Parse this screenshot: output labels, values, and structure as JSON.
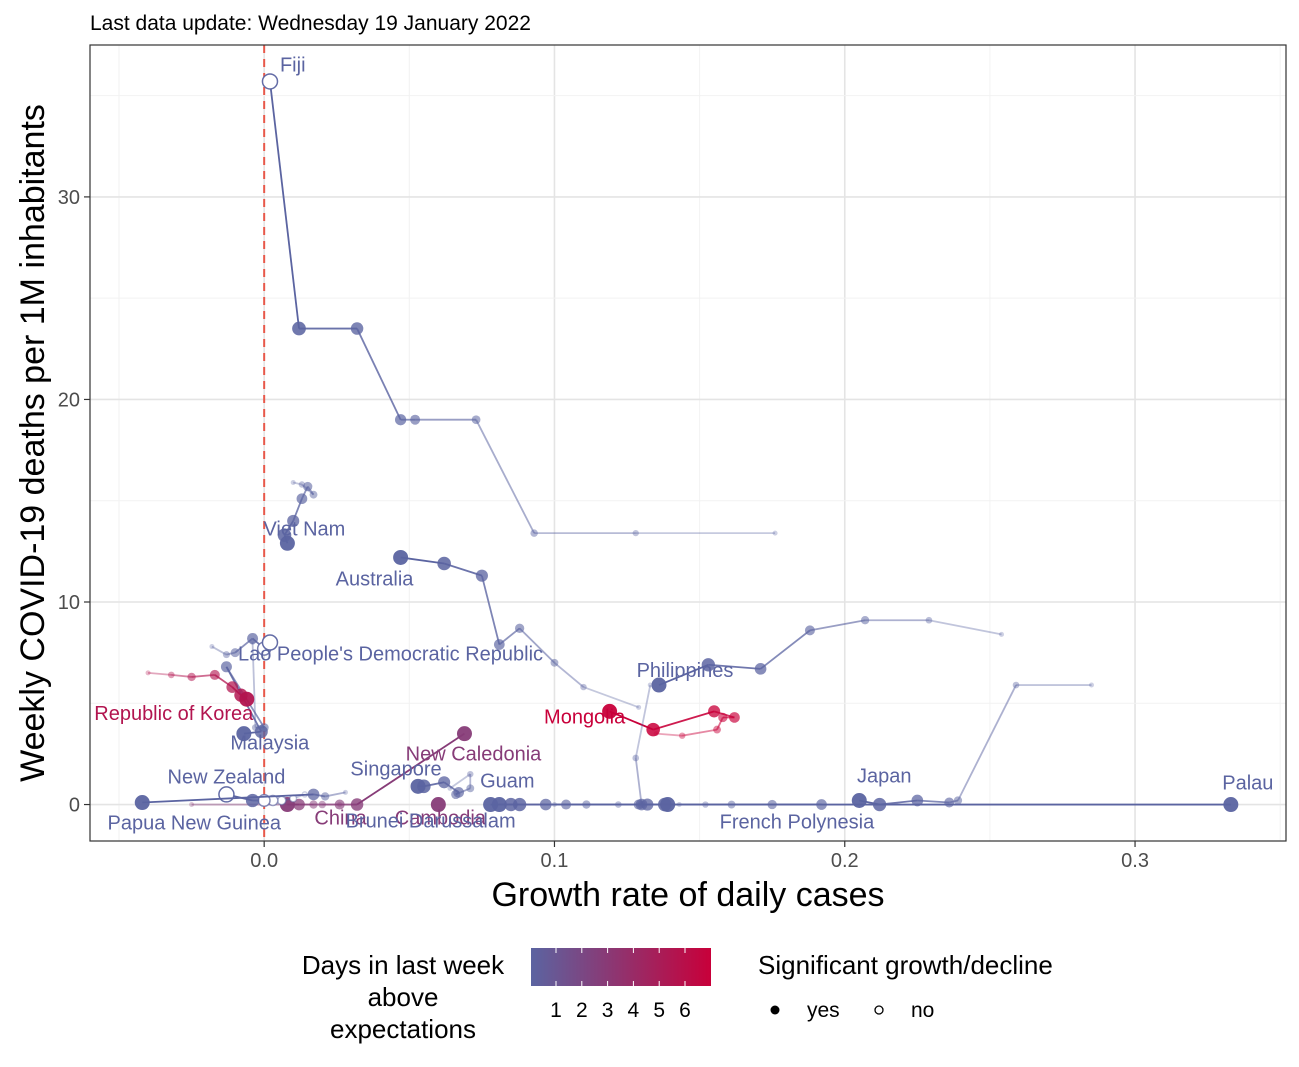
{
  "subtitle": "Last data update: Wednesday 19 January 2022",
  "colors": {
    "low": "#5b64a1",
    "high": "#c8003a",
    "zero_line": "#e8584a",
    "grid_major": "#e4e4e4",
    "grid_minor": "#f2f2f2",
    "panel_border": "#333333"
  },
  "chart_data": {
    "type": "scatter",
    "title": "",
    "xlabel": "Growth rate of daily cases",
    "ylabel": "Weekly COVID-19 deaths per 1M inhabitants",
    "xlim": [
      -0.06,
      0.352
    ],
    "ylim": [
      -1.8,
      37.5
    ],
    "x_ticks": [
      0.0,
      0.1,
      0.2,
      0.3
    ],
    "x_tick_labels": [
      "0.0",
      "0.1",
      "0.2",
      "0.3"
    ],
    "y_ticks": [
      0,
      10,
      20,
      30
    ],
    "y_tick_labels": [
      "0",
      "10",
      "20",
      "30"
    ],
    "grid": true,
    "reference_line": {
      "x": 0,
      "style": "dashed"
    },
    "legend": {
      "position": "bottom",
      "color_title": [
        "Days in last week",
        "above",
        "expectations"
      ],
      "color_labels": [
        "1",
        "2",
        "3",
        "4",
        "5",
        "6"
      ],
      "shape_title": "Significant growth/decline",
      "shape_labels": [
        "yes",
        "no"
      ]
    },
    "series": [
      {
        "name": "Fiji",
        "days": 1,
        "label_dx": 10,
        "label_dy": -10,
        "label_anchor": "start",
        "x": [
          0.176,
          0.128,
          0.093,
          0.073,
          0.052,
          0.047,
          0.032,
          0.012,
          0.002
        ],
        "y": [
          13.4,
          13.4,
          13.4,
          19.0,
          19.0,
          19.0,
          23.5,
          23.5,
          35.7
        ],
        "sig": [
          true,
          true,
          true,
          true,
          true,
          true,
          true,
          true,
          false
        ]
      },
      {
        "name": "Viet Nam",
        "days": 1,
        "label_dx": 17,
        "label_dy": -8,
        "label_anchor": "middle",
        "x": [
          0.01,
          0.013,
          0.017,
          0.015,
          0.013,
          0.01,
          0.007,
          0.008
        ],
        "y": [
          15.9,
          15.8,
          15.3,
          15.7,
          15.1,
          14.0,
          13.3,
          12.9
        ],
        "sig": [
          true,
          true,
          true,
          true,
          true,
          true,
          true,
          true
        ]
      },
      {
        "name": "Australia",
        "days": 1,
        "label_dx": -65,
        "label_dy": 28,
        "label_anchor": "start",
        "x": [
          0.129,
          0.11,
          0.1,
          0.088,
          0.081,
          0.075,
          0.062,
          0.047
        ],
        "y": [
          4.8,
          5.8,
          7.0,
          8.7,
          7.9,
          11.3,
          11.9,
          12.2
        ],
        "sig": [
          true,
          true,
          true,
          true,
          true,
          true,
          true,
          true
        ]
      },
      {
        "name": "Philippines",
        "days": 1,
        "label_dx": 26,
        "label_dy": -8,
        "label_anchor": "middle",
        "x": [
          0.254,
          0.229,
          0.207,
          0.188,
          0.171,
          0.153,
          0.136
        ],
        "y": [
          8.4,
          9.1,
          9.1,
          8.6,
          6.7,
          6.9,
          5.9
        ],
        "sig": [
          true,
          true,
          true,
          true,
          true,
          true,
          true
        ]
      },
      {
        "name": "Lao People's Democratic Republic",
        "days": 1,
        "label_dx": -32,
        "label_dy": 18,
        "label_anchor": "start",
        "x": [
          -0.018,
          -0.013,
          -0.01,
          -0.004,
          0.0,
          0.002
        ],
        "y": [
          7.8,
          7.4,
          7.5,
          8.2,
          7.7,
          8.0
        ],
        "sig": [
          true,
          true,
          true,
          true,
          false,
          false
        ]
      },
      {
        "name": "Malaysia",
        "days": 1,
        "label_dx": 26,
        "label_dy": 16,
        "label_anchor": "middle",
        "x": [
          -0.004,
          -0.003,
          0.0,
          -0.013,
          -0.001,
          -0.007
        ],
        "y": [
          8.0,
          3.8,
          3.8,
          6.8,
          3.6,
          3.5
        ],
        "sig": [
          true,
          true,
          true,
          true,
          true,
          true
        ]
      },
      {
        "name": "Republic of Korea",
        "days": 5,
        "label_dx": -73,
        "label_dy": 21,
        "label_anchor": "middle",
        "x": [
          -0.04,
          -0.032,
          -0.025,
          -0.017,
          -0.011,
          -0.008,
          -0.006
        ],
        "y": [
          6.5,
          6.4,
          6.3,
          6.4,
          5.8,
          5.4,
          5.2
        ],
        "sig": [
          true,
          true,
          true,
          true,
          true,
          true,
          true
        ]
      },
      {
        "name": "Mongolia",
        "days": 6,
        "label_dx": -25,
        "label_dy": 12,
        "label_anchor": "middle",
        "x": [
          0.135,
          0.144,
          0.156,
          0.158,
          0.162,
          0.155,
          0.134,
          0.119
        ],
        "y": [
          3.5,
          3.4,
          3.7,
          4.3,
          4.3,
          4.6,
          3.7,
          4.6
        ],
        "sig": [
          true,
          true,
          true,
          true,
          true,
          true,
          true,
          true
        ]
      },
      {
        "name": "New Caledonia",
        "days": 3,
        "label_dx": 9,
        "label_dy": 27,
        "label_anchor": "middle",
        "x": [
          -0.025,
          0.02,
          0.026,
          0.032,
          0.069
        ],
        "y": [
          0.0,
          0.0,
          0.0,
          0.0,
          3.5
        ],
        "sig": [
          true,
          true,
          true,
          true,
          true
        ]
      },
      {
        "name": "Singapore",
        "days": 1,
        "label_dx": -22,
        "label_dy": -11,
        "label_anchor": "middle",
        "x": [
          0.064,
          0.071,
          0.071,
          0.066,
          0.067,
          0.062,
          0.055,
          0.053
        ],
        "y": [
          0.8,
          1.5,
          0.8,
          0.5,
          0.6,
          1.1,
          0.9,
          0.9
        ],
        "sig": [
          true,
          true,
          true,
          true,
          true,
          true,
          true,
          true
        ]
      },
      {
        "name": "China",
        "days": 3,
        "label_dx": 27,
        "label_dy": 20,
        "label_anchor": "start",
        "x": [
          0.026,
          0.017,
          0.012,
          0.008
        ],
        "y": [
          0.0,
          0.0,
          0.0,
          0.0
        ],
        "sig": [
          true,
          true,
          true,
          true
        ]
      },
      {
        "name": "Cambodia",
        "days": 3,
        "label_dx": 2,
        "label_dy": 20,
        "label_anchor": "middle",
        "x": [
          0.06
        ],
        "y": [
          0.0
        ],
        "sig": [
          true
        ]
      },
      {
        "name": "New Zealand",
        "days": 1,
        "label_dx": 0,
        "label_dy": -11,
        "label_anchor": "middle",
        "x": [
          0.014,
          0.01,
          0.006,
          0.003,
          0.0,
          -0.004,
          -0.013
        ],
        "y": [
          0.5,
          0.3,
          0.2,
          0.2,
          0.2,
          0.2,
          0.5
        ],
        "sig": [
          false,
          false,
          false,
          false,
          false,
          true,
          false
        ]
      },
      {
        "name": "Papua New Guinea",
        "days": 1,
        "label_dx": 52,
        "label_dy": 27,
        "label_anchor": "middle",
        "x": [
          0.028,
          0.021,
          0.017,
          -0.042
        ],
        "y": [
          0.6,
          0.4,
          0.5,
          0.1
        ],
        "sig": [
          true,
          true,
          true,
          true
        ]
      },
      {
        "name": "Guam",
        "days": 1,
        "label_dx": 8,
        "label_dy": -17,
        "label_anchor": "middle",
        "x": [
          0.13,
          0.122,
          0.111,
          0.104,
          0.097,
          0.088,
          0.081
        ],
        "y": [
          0.0,
          0.0,
          0.0,
          0.0,
          0.0,
          0.0,
          0.0
        ],
        "sig": [
          true,
          true,
          true,
          true,
          true,
          true,
          true
        ]
      },
      {
        "name": "Brunei Darussalam",
        "days": 1,
        "label_dx": -60,
        "label_dy": 23,
        "label_anchor": "middle",
        "x": [
          0.133,
          0.128,
          0.13,
          0.129,
          0.13,
          0.085,
          0.078
        ],
        "y": [
          5.9,
          2.3,
          0.0,
          0.0,
          0.0,
          0.0,
          0.0
        ],
        "sig": [
          true,
          true,
          true,
          true,
          true,
          true,
          true
        ]
      },
      {
        "name": "French Polynesia",
        "days": 1,
        "label_dx": 52,
        "label_dy": 24,
        "label_anchor": "start",
        "x": [
          0.143,
          0.152,
          0.161,
          0.175,
          0.192,
          0.132,
          0.138,
          0.139
        ],
        "y": [
          0.0,
          0.0,
          0.0,
          0.0,
          0.0,
          0.0,
          0.0,
          0.0
        ],
        "sig": [
          true,
          true,
          true,
          true,
          true,
          true,
          true,
          true
        ]
      },
      {
        "name": "Japan",
        "days": 1,
        "label_dx": 25,
        "label_dy": -18,
        "label_anchor": "middle",
        "x": [
          0.285,
          0.259,
          0.239,
          0.236,
          0.225,
          0.212,
          0.205
        ],
        "y": [
          5.9,
          5.9,
          0.2,
          0.1,
          0.2,
          0.0,
          0.2
        ],
        "sig": [
          true,
          true,
          true,
          true,
          true,
          true,
          true
        ]
      },
      {
        "name": "Palau",
        "days": 1,
        "label_dx": 17,
        "label_dy": -15,
        "label_anchor": "middle",
        "x": [
          0.1,
          0.333
        ],
        "y": [
          0.0,
          0.0
        ],
        "sig": [
          true,
          true
        ]
      }
    ]
  }
}
